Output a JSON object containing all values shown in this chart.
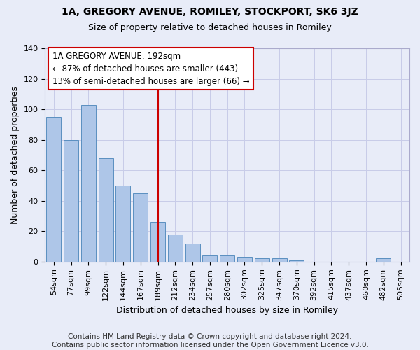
{
  "title": "1A, GREGORY AVENUE, ROMILEY, STOCKPORT, SK6 3JZ",
  "subtitle": "Size of property relative to detached houses in Romiley",
  "xlabel": "Distribution of detached houses by size in Romiley",
  "ylabel": "Number of detached properties",
  "categories": [
    "54sqm",
    "77sqm",
    "99sqm",
    "122sqm",
    "144sqm",
    "167sqm",
    "189sqm",
    "212sqm",
    "234sqm",
    "257sqm",
    "280sqm",
    "302sqm",
    "325sqm",
    "347sqm",
    "370sqm",
    "392sqm",
    "415sqm",
    "437sqm",
    "460sqm",
    "482sqm",
    "505sqm"
  ],
  "values": [
    95,
    80,
    103,
    68,
    50,
    45,
    26,
    18,
    12,
    4,
    4,
    3,
    2,
    2,
    1,
    0,
    0,
    0,
    0,
    2,
    0
  ],
  "bar_color": "#aec6e8",
  "bar_edge_color": "#5a8fc0",
  "vline_x_index": 6,
  "vline_color": "#cc0000",
  "annotation_line1": "1A GREGORY AVENUE: 192sqm",
  "annotation_line2": "← 87% of detached houses are smaller (443)",
  "annotation_line3": "13% of semi-detached houses are larger (66) →",
  "annotation_box_color": "#cc0000",
  "annotation_box_bg": "#ffffff",
  "ylim": [
    0,
    140
  ],
  "yticks": [
    0,
    20,
    40,
    60,
    80,
    100,
    120,
    140
  ],
  "grid_color": "#c8cce8",
  "bg_color": "#e8ecf8",
  "footer": "Contains HM Land Registry data © Crown copyright and database right 2024.\nContains public sector information licensed under the Open Government Licence v3.0.",
  "title_fontsize": 10,
  "subtitle_fontsize": 9,
  "xlabel_fontsize": 9,
  "ylabel_fontsize": 9,
  "tick_fontsize": 8,
  "footer_fontsize": 7.5,
  "annotation_fontsize": 8.5
}
